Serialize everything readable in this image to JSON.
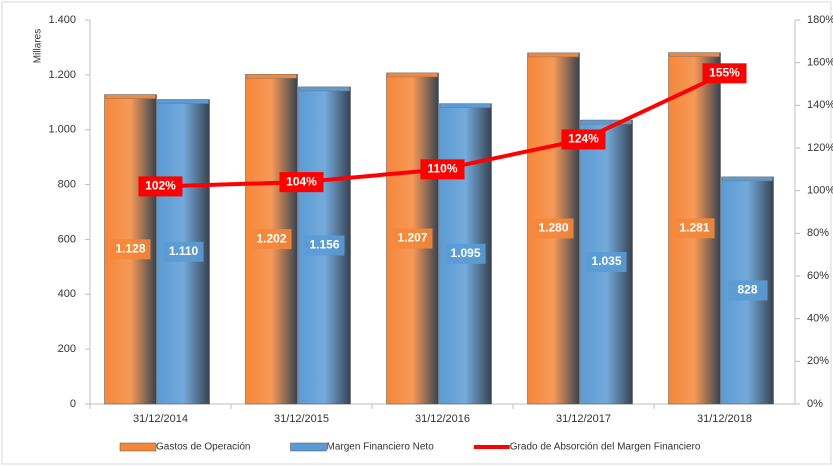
{
  "chart_data": {
    "type": "bar",
    "categories": [
      "31/12/2014",
      "31/12/2015",
      "31/12/2016",
      "31/12/2017",
      "31/12/2018"
    ],
    "ylabel": "Millares",
    "ylim": [
      0,
      1400
    ],
    "yticks": [
      0,
      200,
      400,
      600,
      800,
      {
        "value": 1000,
        "label": "1.000"
      },
      {
        "value": 1200,
        "label": "1.200"
      },
      {
        "value": 1400,
        "label": "1.400"
      }
    ],
    "y2lim": [
      0,
      180
    ],
    "y2ticks": [
      {
        "value": 0,
        "label": "0%"
      },
      {
        "value": 20,
        "label": "20%"
      },
      {
        "value": 40,
        "label": "40%"
      },
      {
        "value": 60,
        "label": "60%"
      },
      {
        "value": 80,
        "label": "80%"
      },
      {
        "value": 100,
        "label": "100%"
      },
      {
        "value": 120,
        "label": "120%"
      },
      {
        "value": 140,
        "label": "140%"
      },
      {
        "value": 160,
        "label": "160%"
      },
      {
        "value": 180,
        "label": "180%"
      }
    ],
    "legend": "bottom",
    "series": [
      {
        "name": "Gastos de Operación",
        "type": "bar",
        "color": "#f5873a",
        "values": [
          1128,
          1202,
          1207,
          1280,
          1281
        ],
        "value_labels": [
          "1.128",
          "1.202",
          "1.207",
          "1.280",
          "1.281"
        ]
      },
      {
        "name": "Margen Financiero Neto",
        "type": "bar",
        "color": "#5b9bd5",
        "values": [
          1110,
          1156,
          1095,
          1035,
          828
        ],
        "value_labels": [
          "1.110",
          "1.156",
          "1.095",
          "1.035",
          "828"
        ]
      },
      {
        "name": "Grado de Absorción del Margen Financiero",
        "type": "line",
        "axis": "y2",
        "color": "#ff0000",
        "values": [
          102,
          104,
          110,
          124,
          155
        ],
        "value_labels": [
          "102%",
          "104%",
          "110%",
          "124%",
          "155%"
        ]
      }
    ]
  }
}
